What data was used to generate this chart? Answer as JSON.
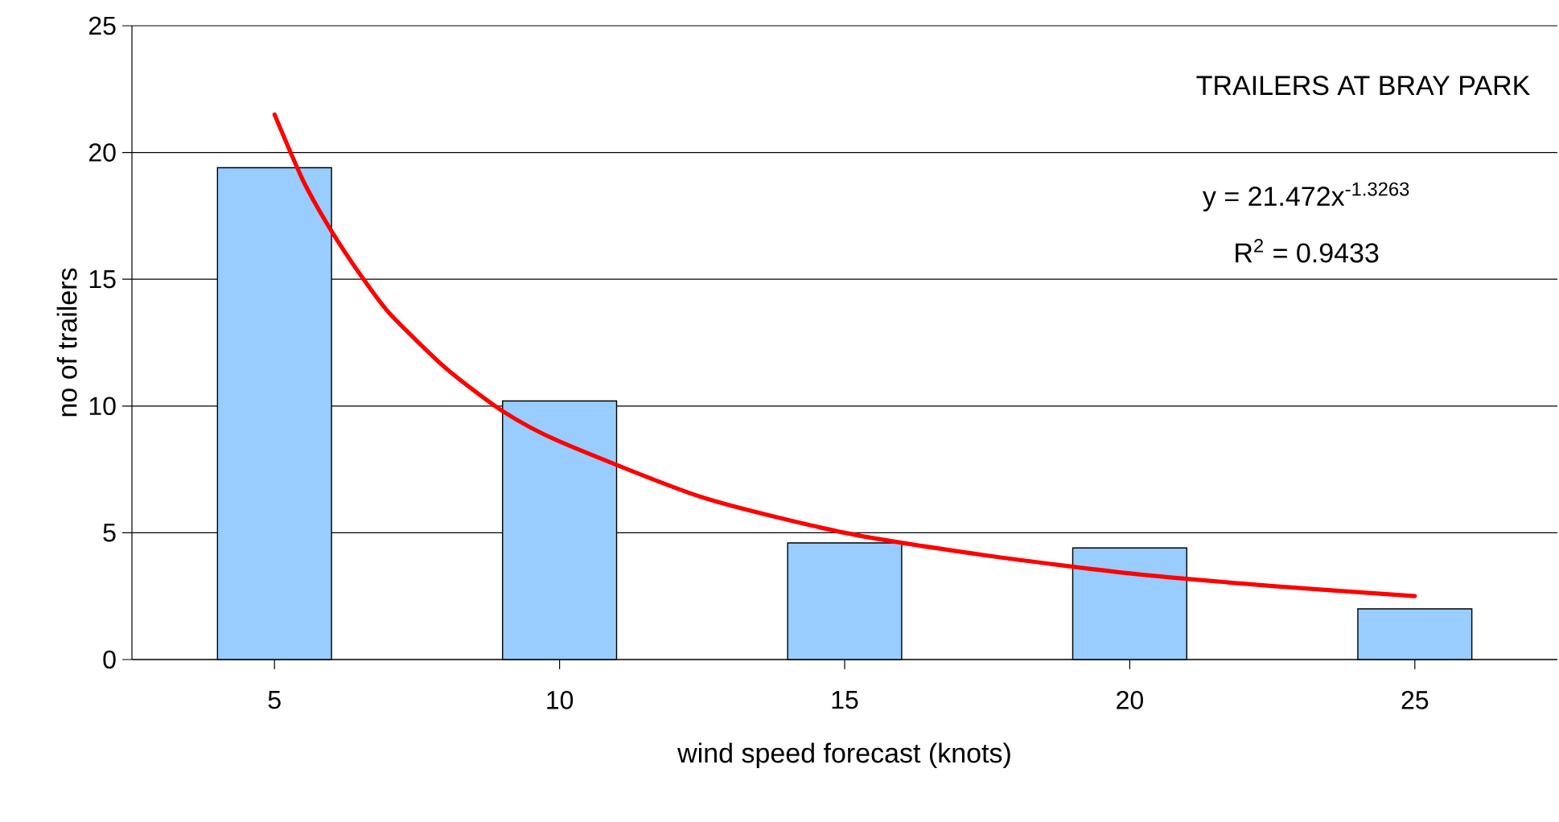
{
  "chart_data": {
    "type": "bar",
    "title": "TRAILERS AT BRAY PARK",
    "xlabel": "wind speed forecast (knots)",
    "ylabel": "no of trailers",
    "annotations": [
      "y = 21.472x$^{-1.3263}$",
      "R$^{2}$ = 0.9433"
    ],
    "x": [
      5,
      10,
      15,
      20,
      25
    ],
    "series": [
      {
        "color": "#99ccff",
        "values": [
          19.4,
          10.2,
          4.6,
          4.4,
          2.0
        ]
      },
      {
        "type": "line",
        "color": "#ff0000",
        "x": [
          5,
          5.5,
          6,
          6.5,
          7,
          8,
          9,
          10,
          12.5,
          15,
          17.5,
          20,
          22.5,
          25
        ],
        "values": [
          21.5,
          18.9,
          16.9,
          15.2,
          13.7,
          11.5,
          9.8,
          8.6,
          6.4,
          5.0,
          4.1,
          3.4,
          2.9,
          2.5
        ]
      }
    ],
    "xlim": [
      2.5,
      27.5
    ],
    "xticks": [
      5,
      10,
      15,
      20,
      25
    ],
    "ylim": [
      0,
      25
    ],
    "yticks": [
      0,
      5,
      10,
      15,
      20,
      25
    ],
    "grid": "y"
  }
}
